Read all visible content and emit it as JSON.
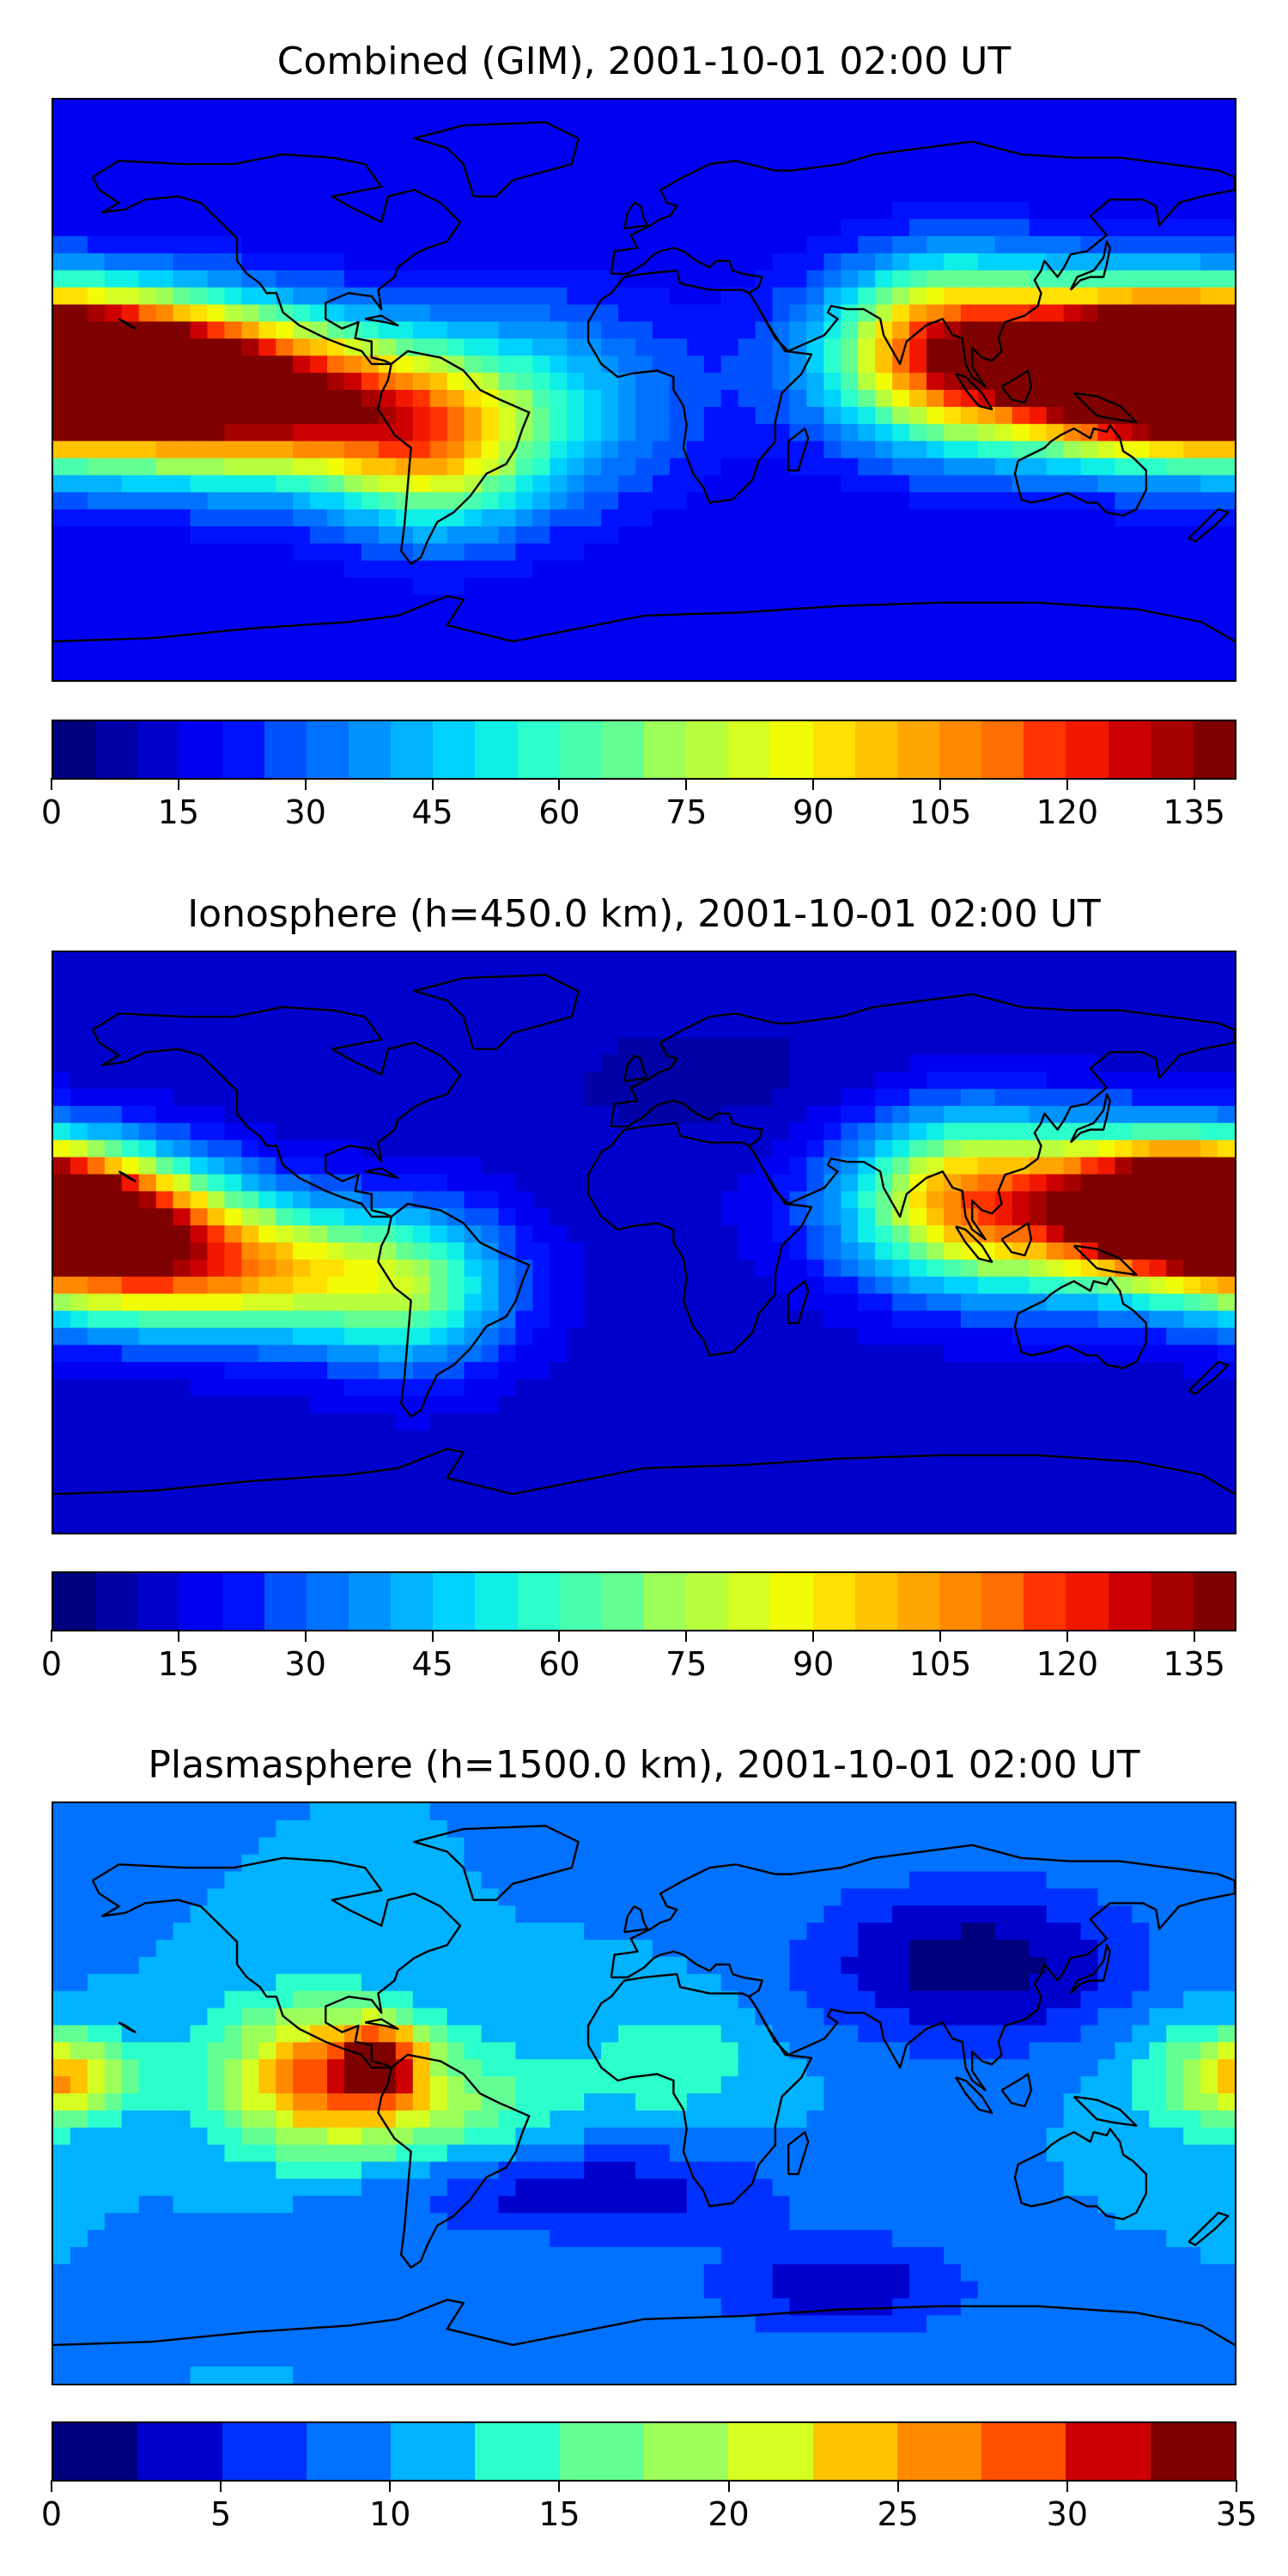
{
  "panels": [
    {
      "title": "Combined (GIM), 2001-10-01 02:00 UT",
      "colorbar": {
        "ticks": [
          "0",
          "15",
          "30",
          "45",
          "60",
          "75",
          "90",
          "105",
          "120",
          "135"
        ],
        "min": 0,
        "max": 140,
        "step": 5
      },
      "field": {
        "background": 16,
        "blobs": [
          {
            "lon": -170,
            "lat": 8,
            "rx": 45,
            "ry": 20,
            "v": 120
          },
          {
            "lon": -145,
            "lat": 0,
            "rx": 55,
            "ry": 24,
            "v": 95
          },
          {
            "lon": -100,
            "lat": -5,
            "rx": 45,
            "ry": 22,
            "v": 75
          },
          {
            "lon": -65,
            "lat": -20,
            "rx": 30,
            "ry": 25,
            "v": 60
          },
          {
            "lon": 120,
            "lat": 8,
            "rx": 55,
            "ry": 25,
            "v": 100
          },
          {
            "lon": 155,
            "lat": 5,
            "rx": 35,
            "ry": 20,
            "v": 120
          },
          {
            "lon": 90,
            "lat": 15,
            "rx": 30,
            "ry": 25,
            "v": 55
          },
          {
            "lon": -30,
            "lat": -5,
            "rx": 40,
            "ry": 30,
            "v": 35
          },
          {
            "lon": 40,
            "lat": -55,
            "rx": 40,
            "ry": 15,
            "v": 4
          }
        ]
      }
    },
    {
      "title": "Ionosphere  (h=450.0 km), 2001-10-01 02:00 UT",
      "colorbar": {
        "ticks": [
          "0",
          "15",
          "30",
          "45",
          "60",
          "75",
          "90",
          "105",
          "120",
          "135"
        ],
        "min": 0,
        "max": 140,
        "step": 5
      },
      "field": {
        "background": 12,
        "blobs": [
          {
            "lon": -175,
            "lat": 12,
            "rx": 40,
            "ry": 18,
            "v": 100
          },
          {
            "lon": -155,
            "lat": -5,
            "rx": 45,
            "ry": 20,
            "v": 85
          },
          {
            "lon": -110,
            "lat": -10,
            "rx": 45,
            "ry": 20,
            "v": 55
          },
          {
            "lon": -70,
            "lat": -15,
            "rx": 30,
            "ry": 25,
            "v": 45
          },
          {
            "lon": 125,
            "lat": 10,
            "rx": 55,
            "ry": 25,
            "v": 80
          },
          {
            "lon": 160,
            "lat": 10,
            "rx": 30,
            "ry": 18,
            "v": 105
          },
          {
            "lon": 95,
            "lat": 15,
            "rx": 30,
            "ry": 25,
            "v": 45
          },
          {
            "lon": 20,
            "lat": 50,
            "rx": 50,
            "ry": 20,
            "v": 0
          }
        ]
      }
    },
    {
      "title": "Plasmasphere (h=1500.0 km), 2001-10-01 02:00 UT",
      "colorbar": {
        "ticks": [
          "0",
          "5",
          "10",
          "15",
          "20",
          "25",
          "30",
          "35"
        ],
        "min": 0,
        "max": 35,
        "step": 2.5
      },
      "field": {
        "background": 10,
        "blobs": [
          {
            "lon": -100,
            "lat": 5,
            "rx": 30,
            "ry": 22,
            "v": 20
          },
          {
            "lon": -80,
            "lat": 10,
            "rx": 12,
            "ry": 12,
            "v": 18
          },
          {
            "lon": -60,
            "lat": -5,
            "rx": 35,
            "ry": 20,
            "v": 10
          },
          {
            "lon": -175,
            "lat": 5,
            "rx": 20,
            "ry": 12,
            "v": 15
          },
          {
            "lon": 10,
            "lat": 10,
            "rx": 30,
            "ry": 20,
            "v": 7
          },
          {
            "lon": 100,
            "lat": 40,
            "rx": 50,
            "ry": 25,
            "v": -6
          },
          {
            "lon": 170,
            "lat": 5,
            "rx": 25,
            "ry": 20,
            "v": 8
          },
          {
            "lon": -20,
            "lat": -30,
            "rx": 60,
            "ry": 15,
            "v": -4
          },
          {
            "lon": 60,
            "lat": -60,
            "rx": 40,
            "ry": 15,
            "v": -4
          }
        ]
      }
    }
  ],
  "colors": [
    "#00007f",
    "#0000a6",
    "#0000cc",
    "#0000f2",
    "#0012ff",
    "#0032ff",
    "#0052ff",
    "#0072ff",
    "#0092ff",
    "#00b2ff",
    "#00d2ff",
    "#0fefe7",
    "#2bffcb",
    "#47ffaf",
    "#64ff93",
    "#80ff77",
    "#9cff5a",
    "#b8ff3e",
    "#d5ff22",
    "#f1fc06",
    "#ffe000",
    "#ffc300",
    "#ffa700",
    "#ff8a00",
    "#ff6e00",
    "#ff5100",
    "#ff3400",
    "#f21800",
    "#cc0000",
    "#a60000",
    "#7f0000"
  ]
}
